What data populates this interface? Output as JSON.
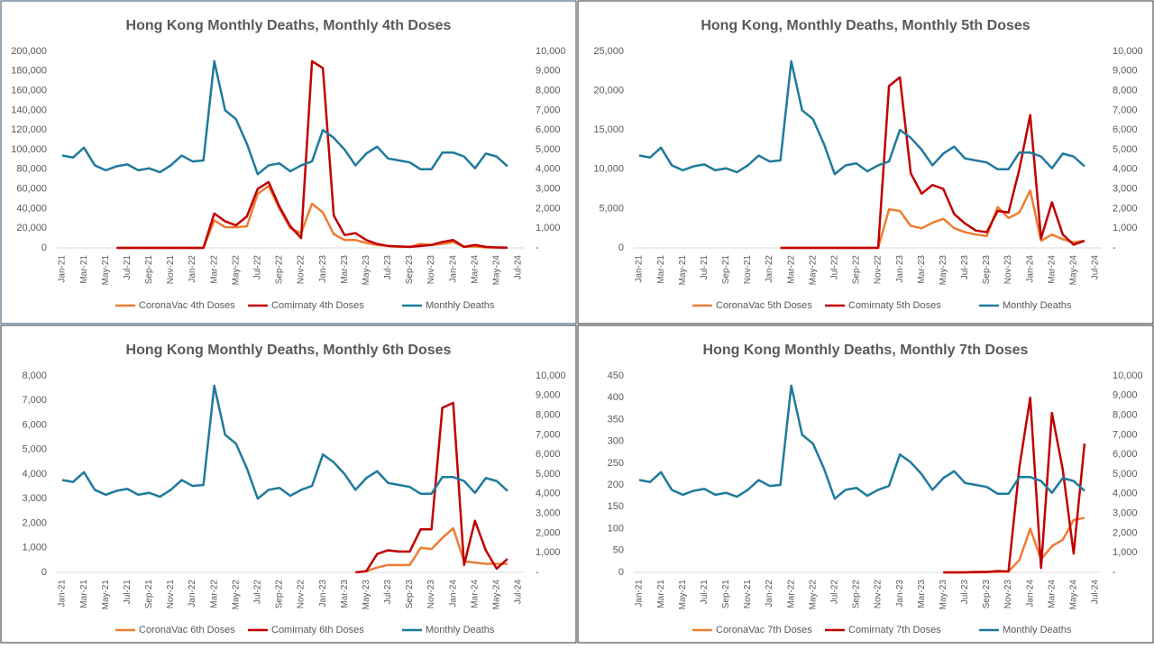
{
  "chart_data": [
    {
      "type": "line",
      "title": "Hong Kong Monthly Deaths, Monthly 4th Doses",
      "categories": [
        "Jan-21",
        null,
        "Mar-21",
        null,
        "May-21",
        null,
        "Jul-21",
        null,
        "Sep-21",
        null,
        "Nov-21",
        null,
        "Jan-22",
        null,
        "Mar-22",
        null,
        "May-22",
        null,
        "Jul-22",
        null,
        "Sep-22",
        null,
        "Nov-22",
        null,
        "Jan-23",
        null,
        "Mar-23",
        null,
        "May-23",
        null,
        "Jul-23",
        null,
        "Sep-23",
        null,
        "Nov-23",
        null,
        "Jan-24",
        null,
        "Mar-24",
        null,
        "May-24",
        null,
        "Jul-24"
      ],
      "series": [
        {
          "name": "CoronaVac 4th Doses",
          "color": "#ed7d31",
          "values": [
            null,
            null,
            null,
            null,
            null,
            0,
            0,
            0,
            0,
            0,
            0,
            0,
            0,
            0,
            28000,
            21000,
            21000,
            22000,
            55000,
            63000,
            40000,
            20000,
            15000,
            45000,
            36000,
            14000,
            8000,
            8000,
            5000,
            3000,
            2000,
            1000,
            1000,
            4000,
            3000,
            4000,
            6000,
            1000,
            1500,
            500,
            300,
            0,
            null
          ]
        },
        {
          "name": "Comirnaty 4th Doses",
          "color": "#c00000",
          "values": [
            null,
            null,
            null,
            null,
            null,
            0,
            0,
            0,
            0,
            0,
            0,
            0,
            0,
            0,
            35000,
            27000,
            23000,
            32000,
            60000,
            67000,
            42000,
            22000,
            10000,
            190000,
            183000,
            33000,
            13000,
            15000,
            8000,
            4000,
            2000,
            1500,
            1000,
            2000,
            3000,
            6000,
            8000,
            1000,
            3000,
            1000,
            500,
            200,
            null
          ]
        },
        {
          "name": "Monthly Deaths",
          "color": "#1f7a9c",
          "axis": "y2",
          "values": [
            4700,
            4600,
            5100,
            4200,
            3950,
            4150,
            4250,
            3950,
            4050,
            3850,
            4200,
            4700,
            4400,
            4450,
            9500,
            7000,
            6550,
            5300,
            3750,
            4200,
            4300,
            3900,
            4200,
            4400,
            6000,
            5600,
            5000,
            4200,
            4800,
            5150,
            4550,
            4450,
            4350,
            4000,
            4000,
            4850,
            4850,
            4650,
            4050,
            4800,
            4650,
            4150,
            null
          ]
        }
      ],
      "ylim": [
        0,
        200000
      ],
      "yticks": [
        0,
        {
          "value": 20000,
          "label": "20,000"
        },
        {
          "value": 40000,
          "label": "40,000"
        },
        {
          "value": 60000,
          "label": "60,000"
        },
        {
          "value": 80000,
          "label": "80,000"
        },
        {
          "value": 100000,
          "label": "100,000"
        },
        {
          "value": 120000,
          "label": "120,000"
        },
        {
          "value": 140000,
          "label": "140,000"
        },
        {
          "value": 160000,
          "label": "160,000"
        },
        {
          "value": 180000,
          "label": "180,000"
        },
        {
          "value": 200000,
          "label": "200,000"
        }
      ],
      "y2lim": [
        0,
        10000
      ],
      "y2ticks": [
        {
          "value": 0,
          "label": "-"
        },
        {
          "value": 1000,
          "label": "1,000"
        },
        {
          "value": 2000,
          "label": "2,000"
        },
        {
          "value": 3000,
          "label": "3,000"
        },
        {
          "value": 4000,
          "label": "4,000"
        },
        {
          "value": 5000,
          "label": "5,000"
        },
        {
          "value": 6000,
          "label": "6,000"
        },
        {
          "value": 7000,
          "label": "7,000"
        },
        {
          "value": 8000,
          "label": "8,000"
        },
        {
          "value": 9000,
          "label": "9,000"
        },
        {
          "value": 10000,
          "label": "10,000"
        }
      ],
      "legend": "bottom"
    },
    {
      "type": "line",
      "title": "Hong Kong, Monthly Deaths, Monthly 5th Doses",
      "categories": [
        "Jan-21",
        null,
        "Mar-21",
        null,
        "May-21",
        null,
        "Jul-21",
        null,
        "Sep-21",
        null,
        "Nov-21",
        null,
        "Jan-22",
        null,
        "Mar-22",
        null,
        "May-22",
        null,
        "Jul-22",
        null,
        "Sep-22",
        null,
        "Nov-22",
        null,
        "Jan-23",
        null,
        "Mar-23",
        null,
        "May-23",
        null,
        "Jul-23",
        null,
        "Sep-23",
        null,
        "Nov-23",
        null,
        "Jan-24",
        null,
        "Mar-24",
        null,
        "May-24",
        null,
        "Jul-24"
      ],
      "series": [
        {
          "name": "CoronaVac 5th Doses",
          "color": "#ed7d31",
          "values": [
            null,
            null,
            null,
            null,
            null,
            null,
            null,
            null,
            null,
            null,
            null,
            null,
            null,
            0,
            0,
            0,
            0,
            0,
            0,
            0,
            0,
            0,
            0,
            4900,
            4700,
            2800,
            2500,
            3200,
            3700,
            2500,
            2000,
            1700,
            1500,
            5200,
            3800,
            4500,
            7300,
            900,
            1700,
            1100,
            700,
            900,
            null
          ]
        },
        {
          "name": "Comirnaty 5th Doses",
          "color": "#c00000",
          "values": [
            null,
            null,
            null,
            null,
            null,
            null,
            null,
            null,
            null,
            null,
            null,
            null,
            null,
            0,
            0,
            0,
            0,
            0,
            0,
            0,
            0,
            0,
            0,
            20600,
            21700,
            9500,
            6900,
            8000,
            7500,
            4300,
            3100,
            2200,
            2000,
            4700,
            4500,
            10000,
            16900,
            1200,
            5800,
            1700,
            400,
            900,
            null
          ]
        },
        {
          "name": "Monthly Deaths",
          "color": "#1f7a9c",
          "axis": "y2",
          "values": [
            4700,
            4600,
            5100,
            4200,
            3950,
            4150,
            4250,
            3950,
            4050,
            3850,
            4200,
            4700,
            4400,
            4450,
            9500,
            7000,
            6550,
            5300,
            3750,
            4200,
            4300,
            3900,
            4200,
            4400,
            6000,
            5600,
            5000,
            4200,
            4800,
            5150,
            4550,
            4450,
            4350,
            4000,
            4000,
            4850,
            4850,
            4650,
            4050,
            4800,
            4650,
            4150,
            null
          ]
        }
      ],
      "ylim": [
        0,
        25000
      ],
      "yticks": [
        0,
        {
          "value": 5000,
          "label": "5,000"
        },
        {
          "value": 10000,
          "label": "10,000"
        },
        {
          "value": 15000,
          "label": "15,000"
        },
        {
          "value": 20000,
          "label": "20,000"
        },
        {
          "value": 25000,
          "label": "25,000"
        }
      ],
      "y2lim": [
        0,
        10000
      ],
      "y2ticks": [
        {
          "value": 0,
          "label": "-"
        },
        {
          "value": 1000,
          "label": "1,000"
        },
        {
          "value": 2000,
          "label": "2,000"
        },
        {
          "value": 3000,
          "label": "3,000"
        },
        {
          "value": 4000,
          "label": "4,000"
        },
        {
          "value": 5000,
          "label": "5,000"
        },
        {
          "value": 6000,
          "label": "6,000"
        },
        {
          "value": 7000,
          "label": "7,000"
        },
        {
          "value": 8000,
          "label": "8,000"
        },
        {
          "value": 9000,
          "label": "9,000"
        },
        {
          "value": 10000,
          "label": "10,000"
        }
      ],
      "legend": "bottom"
    },
    {
      "type": "line",
      "title": "Hong Kong Monthly Deaths, Monthly 6th Doses",
      "categories": [
        "Jan-21",
        null,
        "Mar-21",
        null,
        "May-21",
        null,
        "Jul-21",
        null,
        "Sep-21",
        null,
        "Nov-21",
        null,
        "Jan-22",
        null,
        "Mar-22",
        null,
        "May-22",
        null,
        "Jul-22",
        null,
        "Sep-22",
        null,
        "Nov-22",
        null,
        "Jan-23",
        null,
        "Mar-23",
        null,
        "May-23",
        null,
        "Jul-23",
        null,
        "Sep-23",
        null,
        "Nov-23",
        null,
        "Jan-24",
        null,
        "Mar-24",
        null,
        "May-24",
        null,
        "Jul-24"
      ],
      "series": [
        {
          "name": "CoronaVac 6th Doses",
          "color": "#ed7d31",
          "values": [
            null,
            null,
            null,
            null,
            null,
            null,
            null,
            null,
            null,
            null,
            null,
            null,
            null,
            null,
            null,
            null,
            null,
            null,
            null,
            null,
            null,
            null,
            null,
            null,
            null,
            null,
            null,
            0,
            50,
            200,
            300,
            300,
            300,
            1000,
            950,
            1400,
            1800,
            450,
            400,
            350,
            350,
            350,
            null
          ]
        },
        {
          "name": "Comirnaty 6th Doses",
          "color": "#c00000",
          "values": [
            null,
            null,
            null,
            null,
            null,
            null,
            null,
            null,
            null,
            null,
            null,
            null,
            null,
            null,
            null,
            null,
            null,
            null,
            null,
            null,
            null,
            null,
            null,
            null,
            null,
            null,
            null,
            0,
            50,
            750,
            900,
            850,
            850,
            1750,
            1750,
            6700,
            6900,
            300,
            2100,
            900,
            150,
            550,
            null
          ]
        },
        {
          "name": "Monthly Deaths",
          "color": "#1f7a9c",
          "axis": "y2",
          "values": [
            4700,
            4600,
            5100,
            4200,
            3950,
            4150,
            4250,
            3950,
            4050,
            3850,
            4200,
            4700,
            4400,
            4450,
            9500,
            7000,
            6550,
            5300,
            3750,
            4200,
            4300,
            3900,
            4200,
            4400,
            6000,
            5600,
            5000,
            4200,
            4800,
            5150,
            4550,
            4450,
            4350,
            4000,
            4000,
            4850,
            4850,
            4650,
            4050,
            4800,
            4650,
            4150,
            null
          ]
        }
      ],
      "ylim": [
        0,
        8000
      ],
      "yticks": [
        0,
        {
          "value": 1000,
          "label": "1,000"
        },
        {
          "value": 2000,
          "label": "2,000"
        },
        {
          "value": 3000,
          "label": "3,000"
        },
        {
          "value": 4000,
          "label": "4,000"
        },
        {
          "value": 5000,
          "label": "5,000"
        },
        {
          "value": 6000,
          "label": "6,000"
        },
        {
          "value": 7000,
          "label": "7,000"
        },
        {
          "value": 8000,
          "label": "8,000"
        }
      ],
      "y2lim": [
        0,
        10000
      ],
      "y2ticks": [
        {
          "value": 0,
          "label": "-"
        },
        {
          "value": 1000,
          "label": "1,000"
        },
        {
          "value": 2000,
          "label": "2,000"
        },
        {
          "value": 3000,
          "label": "3,000"
        },
        {
          "value": 4000,
          "label": "4,000"
        },
        {
          "value": 5000,
          "label": "5,000"
        },
        {
          "value": 6000,
          "label": "6,000"
        },
        {
          "value": 7000,
          "label": "7,000"
        },
        {
          "value": 8000,
          "label": "8,000"
        },
        {
          "value": 9000,
          "label": "9,000"
        },
        {
          "value": 10000,
          "label": "10,000"
        }
      ],
      "legend": "bottom"
    },
    {
      "type": "line",
      "title": "Hong Kong Monthly Deaths, Monthly 7th Doses",
      "categories": [
        "Jan-21",
        null,
        "Mar-21",
        null,
        "May-21",
        null,
        "Jul-21",
        null,
        "Sep-21",
        null,
        "Nov-21",
        null,
        "Jan-22",
        null,
        "Mar-22",
        null,
        "May-22",
        null,
        "Jul-22",
        null,
        "Sep-22",
        null,
        "Nov-22",
        null,
        "Jan-23",
        null,
        "Mar-23",
        null,
        "May-23",
        null,
        "Jul-23",
        null,
        "Sep-23",
        null,
        "Nov-23",
        null,
        "Jan-24",
        null,
        "Mar-24",
        null,
        "May-24",
        null,
        "Jul-24"
      ],
      "series": [
        {
          "name": "CoronaVac 7th Doses",
          "color": "#ed7d31",
          "values": [
            null,
            null,
            null,
            null,
            null,
            null,
            null,
            null,
            null,
            null,
            null,
            null,
            null,
            null,
            null,
            null,
            null,
            null,
            null,
            null,
            null,
            null,
            null,
            null,
            null,
            null,
            null,
            null,
            0,
            0,
            0,
            0,
            1,
            1,
            2,
            28,
            100,
            30,
            60,
            75,
            120,
            125,
            null
          ]
        },
        {
          "name": "Comirnaty 7th Doses",
          "color": "#c00000",
          "values": [
            null,
            null,
            null,
            null,
            null,
            null,
            null,
            null,
            null,
            null,
            null,
            null,
            null,
            null,
            null,
            null,
            null,
            null,
            null,
            null,
            null,
            null,
            null,
            null,
            null,
            null,
            null,
            null,
            0,
            0,
            0,
            1,
            1,
            3,
            2,
            240,
            400,
            10,
            365,
            235,
            43,
            295,
            null
          ]
        },
        {
          "name": "Monthly Deaths",
          "color": "#1f7a9c",
          "axis": "y2",
          "values": [
            4700,
            4600,
            5100,
            4200,
            3950,
            4150,
            4250,
            3950,
            4050,
            3850,
            4200,
            4700,
            4400,
            4450,
            9500,
            7000,
            6550,
            5300,
            3750,
            4200,
            4300,
            3900,
            4200,
            4400,
            6000,
            5600,
            5000,
            4200,
            4800,
            5150,
            4550,
            4450,
            4350,
            4000,
            4000,
            4850,
            4850,
            4650,
            4050,
            4800,
            4650,
            4150,
            null
          ]
        }
      ],
      "ylim": [
        0,
        450
      ],
      "yticks": [
        0,
        50,
        100,
        150,
        200,
        250,
        300,
        350,
        400,
        450
      ],
      "y2lim": [
        0,
        10000
      ],
      "y2ticks": [
        {
          "value": 0,
          "label": "-"
        },
        {
          "value": 1000,
          "label": "1,000"
        },
        {
          "value": 2000,
          "label": "2,000"
        },
        {
          "value": 3000,
          "label": "3,000"
        },
        {
          "value": 4000,
          "label": "4,000"
        },
        {
          "value": 5000,
          "label": "5,000"
        },
        {
          "value": 6000,
          "label": "6,000"
        },
        {
          "value": 7000,
          "label": "7,000"
        },
        {
          "value": 8000,
          "label": "8,000"
        },
        {
          "value": 9000,
          "label": "9,000"
        },
        {
          "value": 10000,
          "label": "10,000"
        }
      ],
      "legend": "bottom"
    }
  ]
}
